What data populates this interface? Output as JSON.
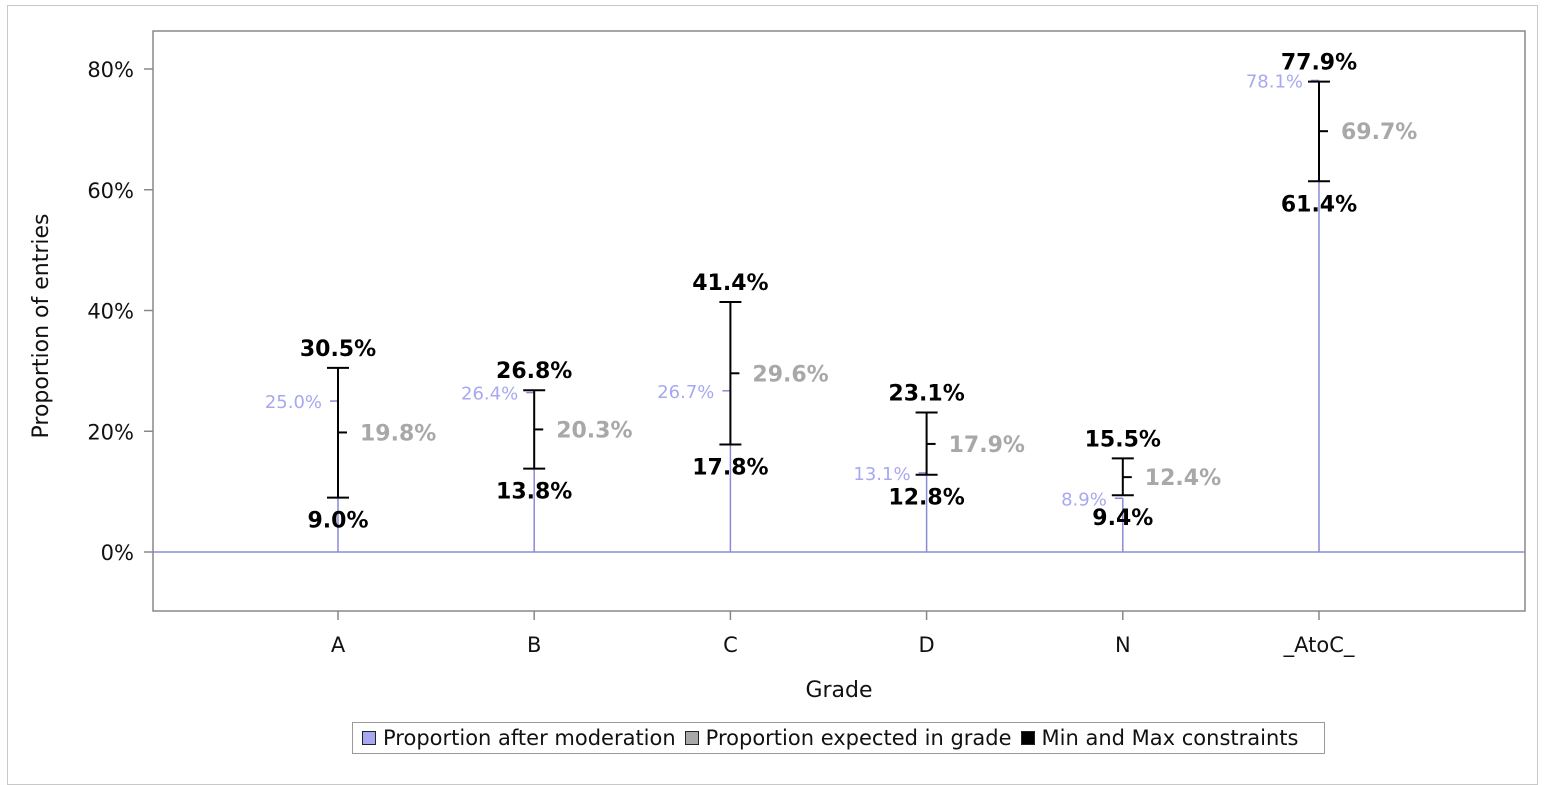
{
  "chart_data": {
    "type": "bar",
    "xlabel": "Grade",
    "ylabel": "Proportion of entries",
    "ylim": [
      -10,
      86
    ],
    "y_ticks": [
      0,
      20,
      40,
      60,
      80
    ],
    "y_tick_labels": [
      "0%",
      "20%",
      "40%",
      "60%",
      "80%"
    ],
    "categories": [
      "A",
      "B",
      "C",
      "D",
      "N",
      "_AtoC_"
    ],
    "series": [
      {
        "name": "Proportion after moderation",
        "values": [
          25.0,
          26.4,
          26.7,
          13.1,
          8.9,
          78.1
        ],
        "labels": [
          "25.0%",
          "26.4%",
          "26.7%",
          "13.1%",
          "8.9%",
          "78.1%"
        ]
      },
      {
        "name": "Proportion expected in grade",
        "values": [
          19.8,
          20.3,
          29.6,
          17.9,
          12.4,
          69.7
        ],
        "labels": [
          "19.8%",
          "20.3%",
          "29.6%",
          "17.9%",
          "12.4%",
          "69.7%"
        ]
      },
      {
        "name": "Min and Max constraints",
        "min": [
          9.0,
          13.8,
          17.8,
          12.8,
          9.4,
          61.4
        ],
        "max": [
          30.5,
          26.8,
          41.4,
          23.1,
          15.5,
          77.9
        ],
        "min_labels": [
          "9.0%",
          "13.8%",
          "17.8%",
          "12.8%",
          "9.4%",
          "61.4%"
        ],
        "max_labels": [
          "30.5%",
          "26.8%",
          "41.4%",
          "23.1%",
          "15.5%",
          "77.9%"
        ]
      }
    ],
    "legend_position": "bottom",
    "grid": false
  },
  "colors": {
    "moderation": "#a8a8f0",
    "moderation_line": "#8a8ad8",
    "expected": "#a8a8a8",
    "constraints": "#000000",
    "axis": "#888888"
  },
  "legend": {
    "items": [
      {
        "label": "Proportion after moderation",
        "color": "#a8a8f0"
      },
      {
        "label": "Proportion expected in grade",
        "color": "#a8a8a8"
      },
      {
        "label": "Min and Max constraints",
        "color": "#000000"
      }
    ]
  }
}
